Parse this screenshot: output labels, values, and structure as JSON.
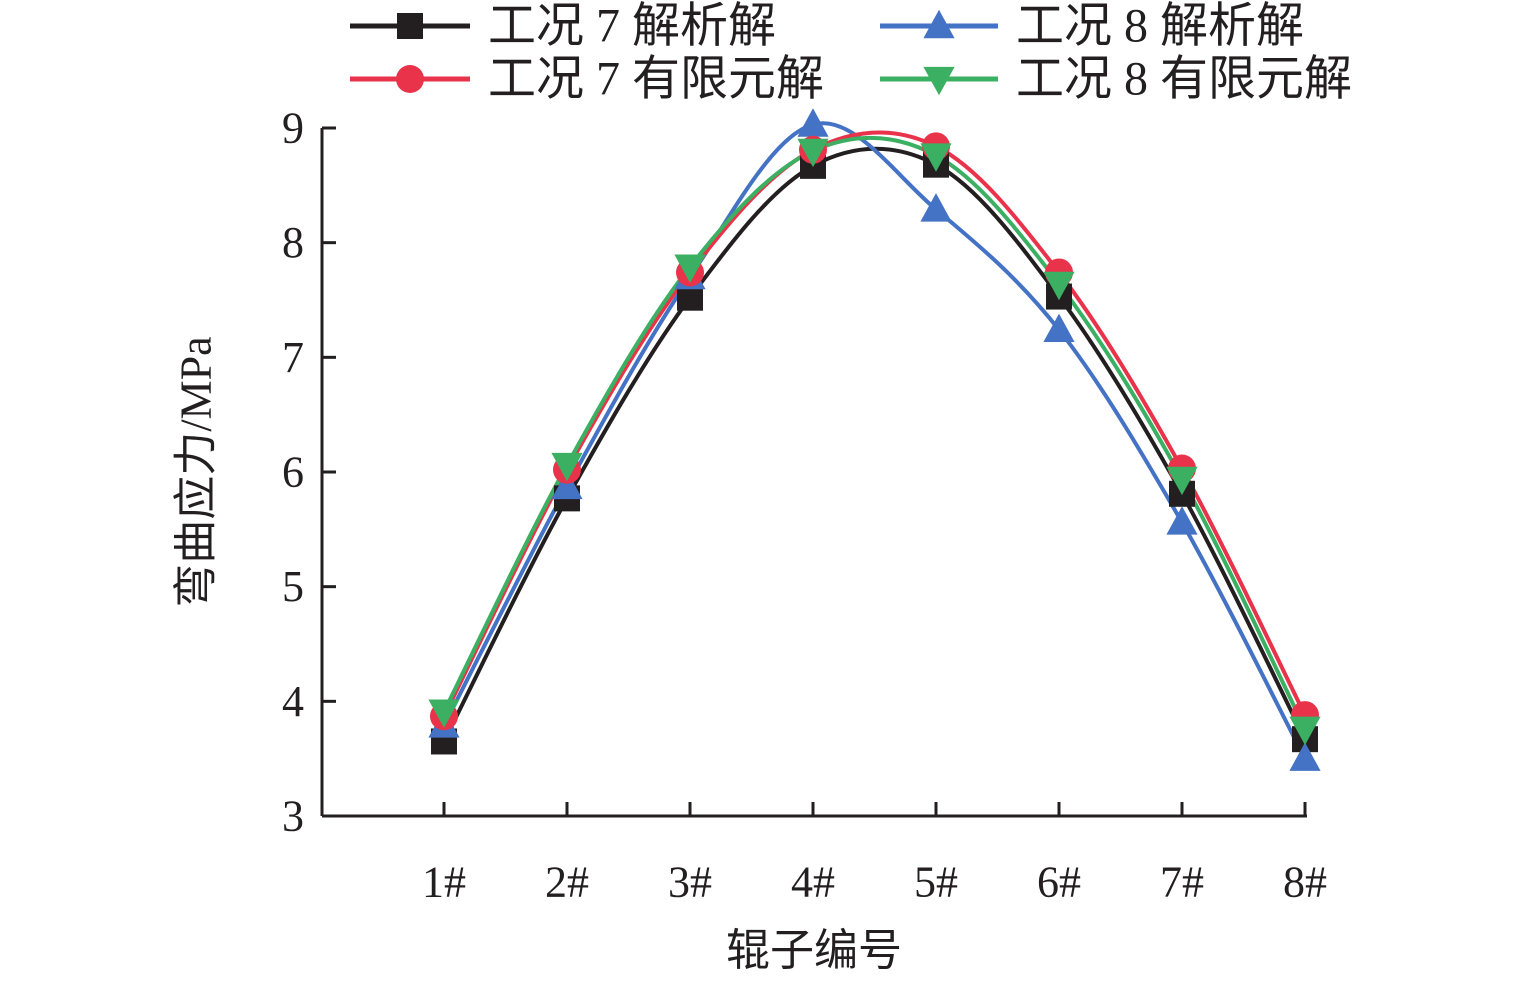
{
  "chart_data": {
    "type": "line",
    "categories": [
      "1#",
      "2#",
      "3#",
      "4#",
      "5#",
      "6#",
      "7#",
      "8#"
    ],
    "series": [
      {
        "name": "工况 7 解析解",
        "color": "#231f20",
        "marker": "square",
        "values": [
          3.65,
          5.77,
          7.52,
          8.67,
          8.68,
          7.53,
          5.81,
          3.67
        ]
      },
      {
        "name": "工况 8 解析解",
        "color": "#4472c4",
        "marker": "triangle-up",
        "values": [
          3.79,
          5.87,
          7.7,
          9.03,
          8.29,
          7.24,
          5.56,
          3.5
        ]
      },
      {
        "name": "工况 7 有限元解",
        "color": "#e8334a",
        "marker": "circle",
        "values": [
          3.87,
          6.02,
          7.74,
          8.81,
          8.84,
          7.74,
          6.03,
          3.88
        ]
      },
      {
        "name": "工况 8 有限元解",
        "color": "#3cb062",
        "marker": "triangle-down",
        "values": [
          3.91,
          6.06,
          7.79,
          8.8,
          8.76,
          7.64,
          5.94,
          3.76
        ]
      }
    ],
    "xlabel": "辊子编号",
    "ylabel": "弯曲应力/MPa",
    "ylim": [
      3,
      9
    ],
    "yticks": [
      "3",
      "4",
      "5",
      "6",
      "7",
      "8",
      "9"
    ],
    "grid": false,
    "legend": "top"
  }
}
